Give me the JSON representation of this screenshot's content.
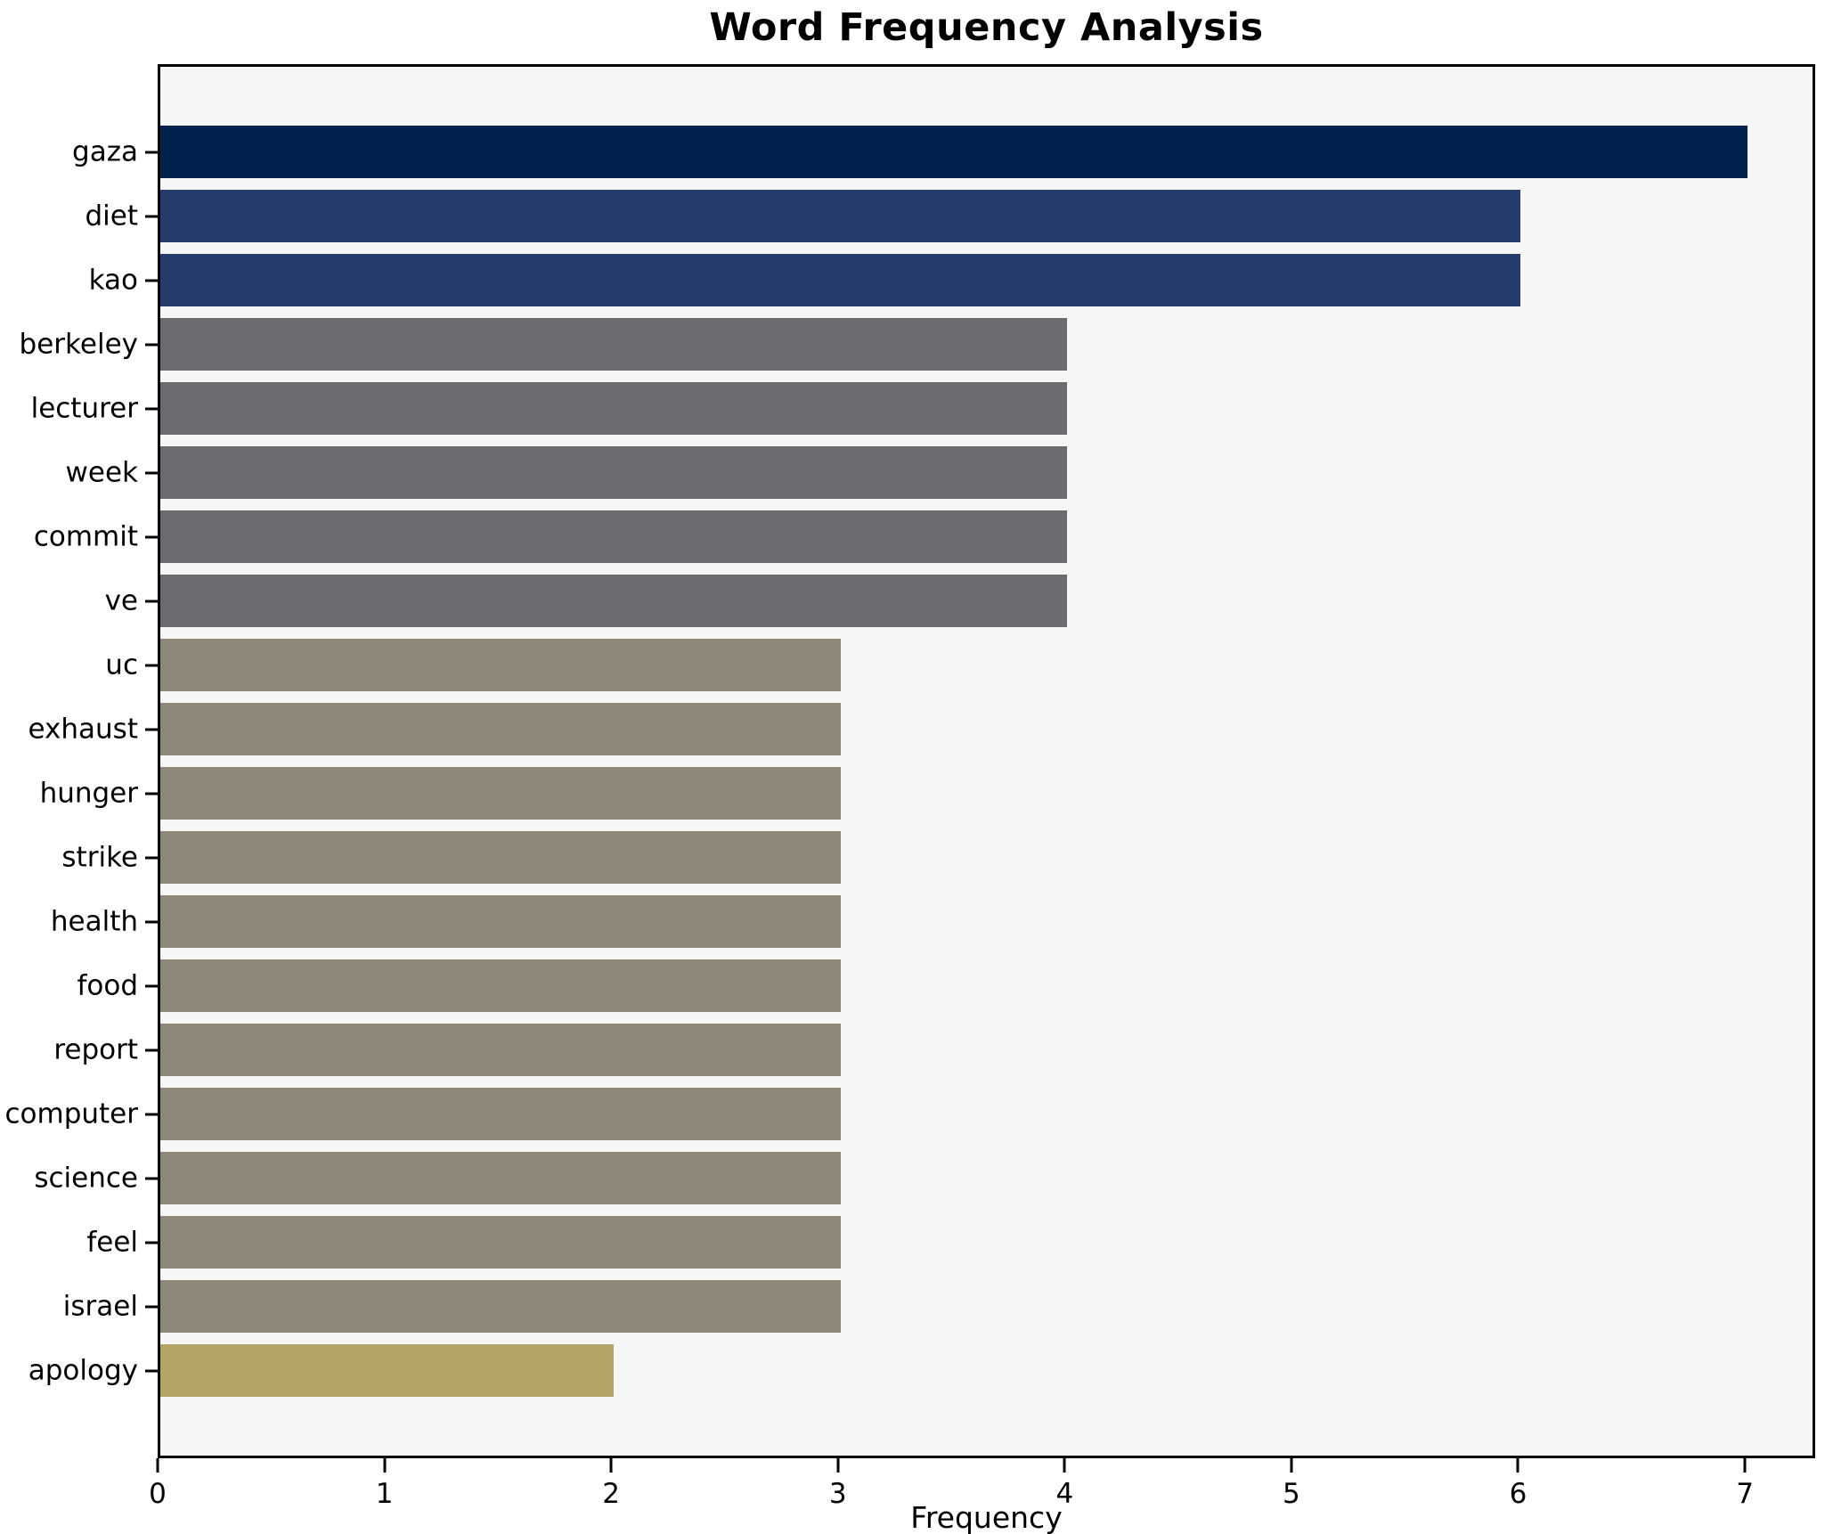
{
  "chart_data": {
    "type": "bar",
    "orientation": "horizontal",
    "title": "Word Frequency Analysis",
    "xlabel": "Frequency",
    "ylabel": "",
    "categories": [
      "gaza",
      "diet",
      "kao",
      "berkeley",
      "lecturer",
      "week",
      "commit",
      "ve",
      "uc",
      "exhaust",
      "hunger",
      "strike",
      "health",
      "food",
      "report",
      "computer",
      "science",
      "feel",
      "israel",
      "apology"
    ],
    "values": [
      7,
      6,
      6,
      4,
      4,
      4,
      4,
      4,
      3,
      3,
      3,
      3,
      3,
      3,
      3,
      3,
      3,
      3,
      3,
      2
    ],
    "bar_colors": [
      "#02224e",
      "#253c6d",
      "#253c6d",
      "#6b6b70",
      "#6b6b70",
      "#6b6b70",
      "#6b6b70",
      "#6b6b70",
      "#8e8878",
      "#8e8878",
      "#8e8878",
      "#8e8878",
      "#8e8878",
      "#8e8878",
      "#8e8878",
      "#8e8878",
      "#8e8878",
      "#8e8878",
      "#8e8878",
      "#b2a567"
    ],
    "x_ticks": [
      0,
      1,
      2,
      3,
      4,
      5,
      6,
      7
    ],
    "xlim": [
      0,
      7.31
    ],
    "grid": false,
    "legend": null,
    "plot_background": "#f6f6f6",
    "spine_color": "#000000"
  }
}
